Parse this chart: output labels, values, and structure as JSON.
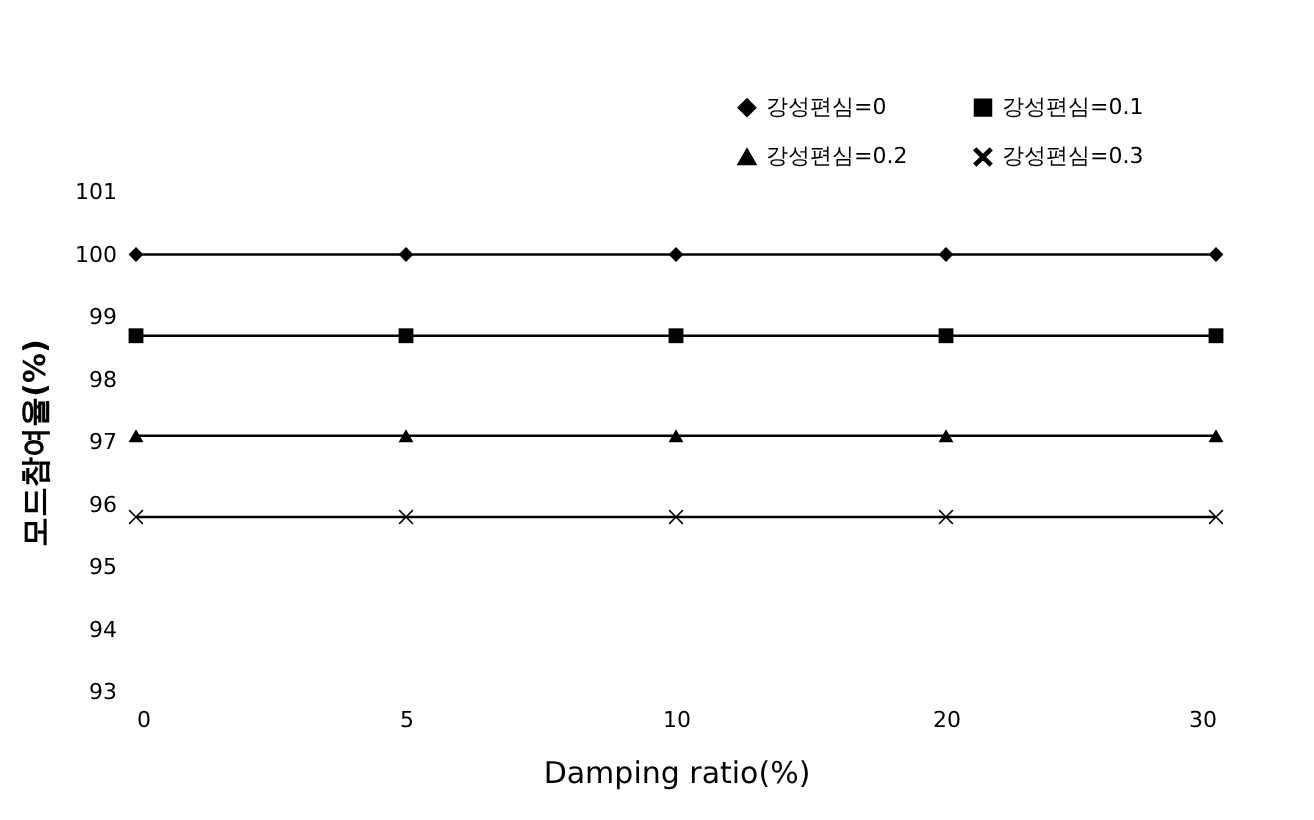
{
  "chart_data": {
    "type": "line",
    "xlabel": "Damping ratio(%)",
    "ylabel": "모드참여율(%)",
    "categories": [
      "0",
      "5",
      "10",
      "20",
      "30"
    ],
    "ylim": [
      93,
      101
    ],
    "yticks": [
      93,
      94,
      95,
      96,
      97,
      98,
      99,
      100,
      101
    ],
    "grid": false,
    "legend": "top right",
    "series": [
      {
        "name": "강성편심=0",
        "color": "#000000",
        "marker": "diamond",
        "values": [
          100,
          100,
          100,
          100,
          100
        ]
      },
      {
        "name": "강성편심=0.1",
        "color": "#000000",
        "marker": "square",
        "values": [
          98.7,
          98.7,
          98.7,
          98.7,
          98.7
        ]
      },
      {
        "name": "강성편심=0.2",
        "color": "#000000",
        "marker": "triangle",
        "values": [
          97.1,
          97.1,
          97.1,
          97.1,
          97.1
        ]
      },
      {
        "name": "강성편심=0.3",
        "color": "#000000",
        "marker": "cross",
        "values": [
          95.8,
          95.8,
          95.8,
          95.8,
          95.8
        ]
      }
    ]
  }
}
